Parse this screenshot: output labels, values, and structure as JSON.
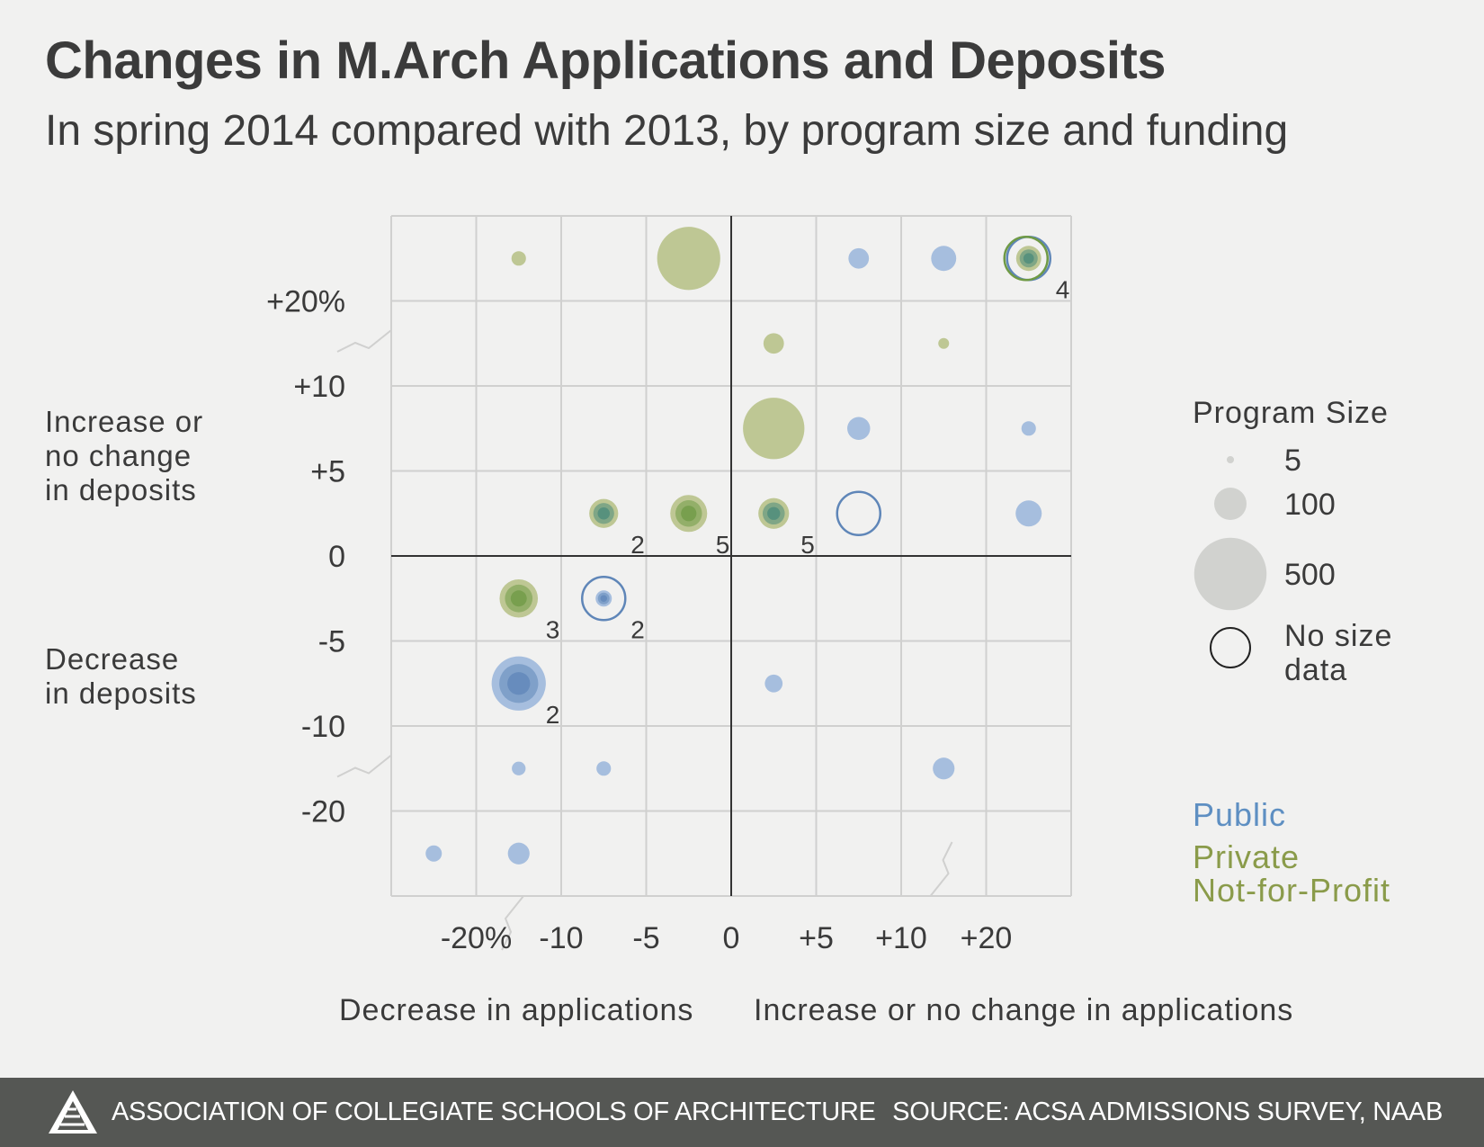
{
  "title": "Changes in M.Arch Applications and Deposits",
  "subtitle": "In spring 2014 compared with 2013, by program size and funding",
  "y_group_labels": {
    "increase": [
      "Increase or",
      "no change",
      "in deposits"
    ],
    "decrease": [
      "Decrease",
      "in deposits"
    ]
  },
  "x_group_labels": {
    "decrease": "Decrease in applications",
    "increase": "Increase or no change in applications"
  },
  "legend": {
    "size_title": "Program Size",
    "size_entries": [
      {
        "label": "5",
        "size": 5
      },
      {
        "label": "100",
        "size": 100
      },
      {
        "label": "500",
        "size": 500
      }
    ],
    "no_size_label": [
      "No size",
      "data"
    ],
    "funding": [
      {
        "label": [
          "Public"
        ],
        "color": "#5e8fc2"
      },
      {
        "label": [
          "Private",
          "Not-for-Profit"
        ],
        "color": "#8a9b4a"
      }
    ]
  },
  "footer": {
    "org": "ASSOCIATION OF COLLEGIATE SCHOOLS OF ARCHITECTURE",
    "source": "SOURCE: ACSA ADMISSIONS SURVEY, NAAB"
  },
  "colors": {
    "public": "#9db8dc",
    "public_dark": "#5f86b8",
    "private": "#b8c28a",
    "private_dark": "#6f9a45",
    "mixed_dark": "#4a8a7a",
    "grid": "#d0d0cf",
    "axis": "#333333",
    "legend_gray": "#d1d2cf"
  },
  "chart_data": {
    "type": "scatter",
    "x_tick_labels": [
      "-20%",
      "-10",
      "-5",
      "0",
      "+5",
      "+10",
      "+20"
    ],
    "y_tick_labels": [
      "+20%",
      "+10",
      "+5",
      "0",
      "-5",
      "-10",
      "-20"
    ],
    "x_bins": [
      "<-20",
      "-20 to -10",
      "-10 to -5",
      "-5 to 0",
      "0 to +5",
      "+5 to +10",
      "+10 to +20",
      ">+20"
    ],
    "y_bins": [
      ">+20",
      "+10 to +20",
      "+5 to +10",
      "0 to +5",
      "-5 to 0",
      "-10 to -5",
      "-20 to -10",
      "<-20"
    ],
    "points": [
      {
        "x_bin": 1,
        "y_bin": 0,
        "funding": "private",
        "size": 20
      },
      {
        "x_bin": 3,
        "y_bin": 0,
        "funding": "private",
        "size": 380
      },
      {
        "x_bin": 5,
        "y_bin": 0,
        "funding": "public",
        "size": 40
      },
      {
        "x_bin": 6,
        "y_bin": 0,
        "funding": "public",
        "size": 60
      },
      {
        "x_bin": 7,
        "y_bin": 0,
        "funding": "mixed",
        "size": 60,
        "count": 4,
        "no_size": true
      },
      {
        "x_bin": 4,
        "y_bin": 1,
        "funding": "private",
        "size": 40
      },
      {
        "x_bin": 6,
        "y_bin": 1,
        "funding": "private",
        "size": 6
      },
      {
        "x_bin": 4,
        "y_bin": 2,
        "funding": "private",
        "size": 360
      },
      {
        "x_bin": 5,
        "y_bin": 2,
        "funding": "public",
        "size": 50
      },
      {
        "x_bin": 7,
        "y_bin": 2,
        "funding": "public",
        "size": 20
      },
      {
        "x_bin": 2,
        "y_bin": 3,
        "funding": "mixed",
        "size": 80,
        "count": 2
      },
      {
        "x_bin": 3,
        "y_bin": 3,
        "funding": "private",
        "size": 130,
        "count": 5
      },
      {
        "x_bin": 4,
        "y_bin": 3,
        "funding": "mixed",
        "size": 90,
        "count": 5
      },
      {
        "x_bin": 5,
        "y_bin": 3,
        "funding": "public",
        "no_size": true
      },
      {
        "x_bin": 7,
        "y_bin": 3,
        "funding": "public",
        "size": 65
      },
      {
        "x_bin": 1,
        "y_bin": 4,
        "funding": "private",
        "size": 140,
        "count": 3
      },
      {
        "x_bin": 2,
        "y_bin": 4,
        "funding": "public",
        "size": 25,
        "count": 2,
        "no_size": true
      },
      {
        "x_bin": 1,
        "y_bin": 5,
        "funding": "public",
        "size": 280,
        "count": 2
      },
      {
        "x_bin": 4,
        "y_bin": 5,
        "funding": "public",
        "size": 30
      },
      {
        "x_bin": 1,
        "y_bin": 6,
        "funding": "public",
        "size": 18
      },
      {
        "x_bin": 2,
        "y_bin": 6,
        "funding": "public",
        "size": 20
      },
      {
        "x_bin": 6,
        "y_bin": 6,
        "funding": "public",
        "size": 45
      },
      {
        "x_bin": 0,
        "y_bin": 7,
        "funding": "public",
        "size": 25
      },
      {
        "x_bin": 1,
        "y_bin": 7,
        "funding": "public",
        "size": 45
      }
    ]
  }
}
